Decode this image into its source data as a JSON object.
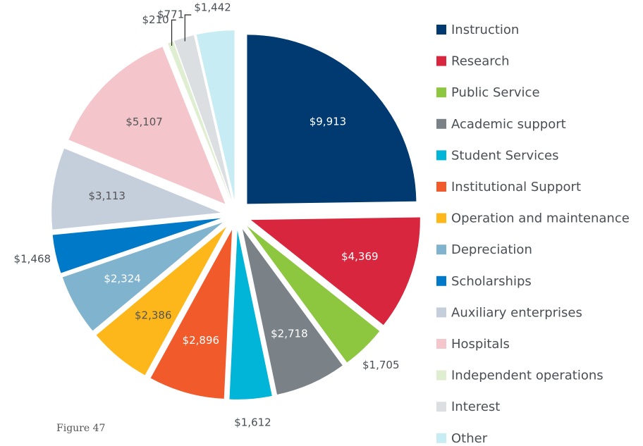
{
  "chart_data": {
    "type": "pie",
    "categories": [
      "Instruction",
      "Research",
      "Public Service",
      "Academic support",
      "Student Services",
      "Institutional Support",
      "Operation and maintenance",
      "Depreciation",
      "Scholarships",
      "Auxiliary enterprises",
      "Hospitals",
      "Independent operations",
      "Interest",
      "Other"
    ],
    "values": [
      9913,
      4369,
      1705,
      2718,
      1612,
      2896,
      2386,
      2324,
      1468,
      3113,
      5107,
      210,
      771,
      1442
    ],
    "value_labels": [
      "$9,913",
      "$4,369",
      "$1,705",
      "$2,718",
      "$1,612",
      "$2,896",
      "$2,386",
      "$2,324",
      "$1,468",
      "$3,113",
      "$5,107",
      "$210",
      "$771",
      "$1,442"
    ],
    "colors": [
      "#003a70",
      "#d7263d",
      "#8dc63f",
      "#7a8288",
      "#00b5d8",
      "#f15a2b",
      "#fdb71a",
      "#80b3ce",
      "#0079c8",
      "#c5cfdc",
      "#f4c5cb",
      "#dfeed0",
      "#dcdfe2",
      "#c8ecf4"
    ],
    "legend": "right",
    "caption": "Figure 47"
  }
}
